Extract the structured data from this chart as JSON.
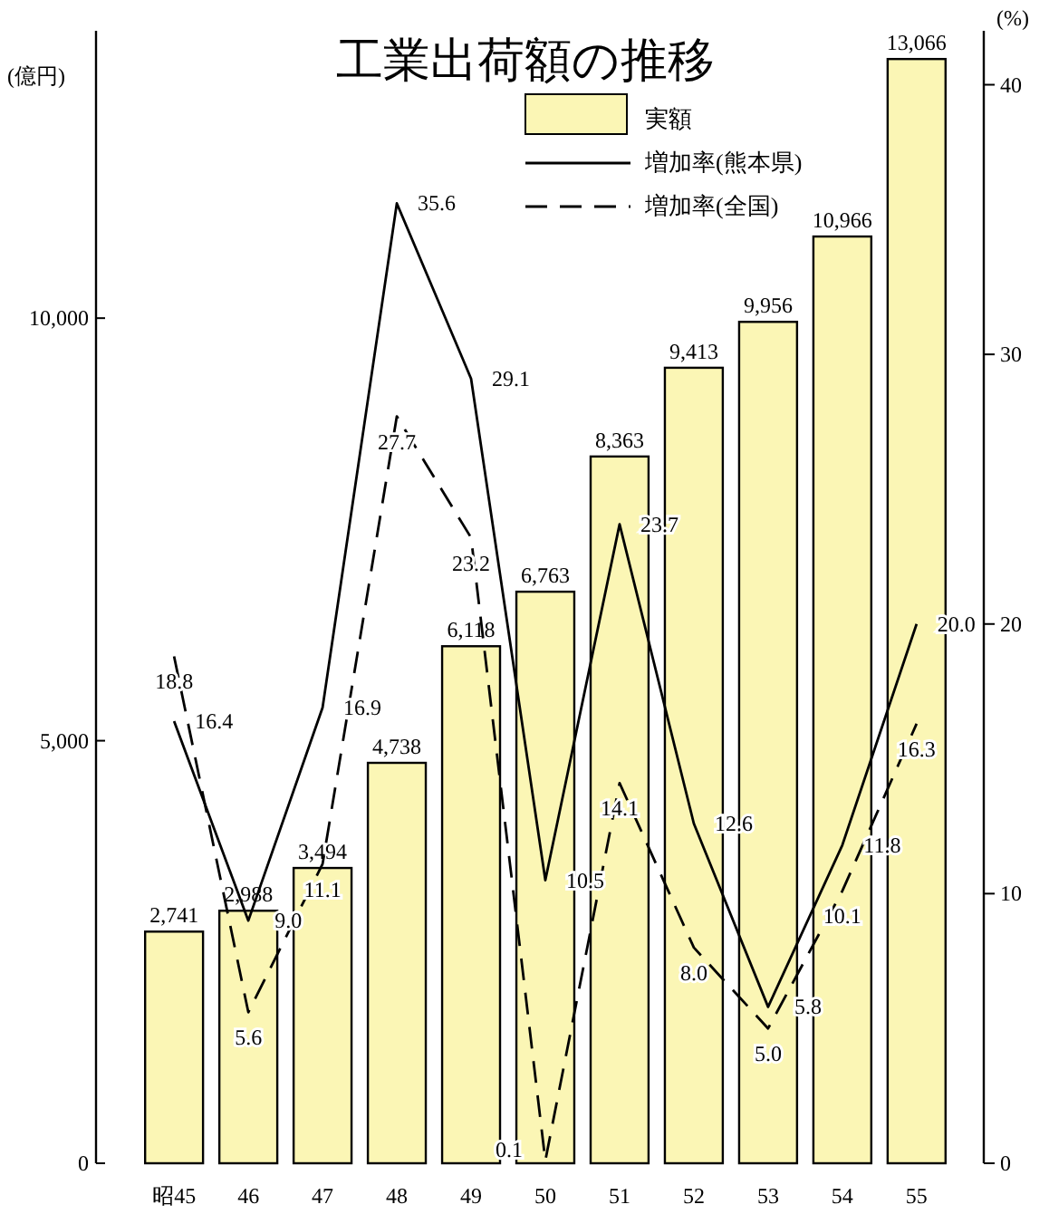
{
  "chart_data": {
    "type": "bar",
    "title": "工業出荷額の推移",
    "ylabel": "(億円)",
    "y2label": "(%)",
    "categories": [
      "昭45",
      "46",
      "47",
      "48",
      "49",
      "50",
      "51",
      "52",
      "53",
      "54",
      "55"
    ],
    "series": [
      {
        "name": "実額",
        "type": "bar",
        "color": "#fbf6b5",
        "values": [
          2741,
          2988,
          3494,
          4738,
          6118,
          6763,
          8363,
          9413,
          9956,
          10966,
          13066
        ],
        "value_labels": [
          "2,741",
          "2,988",
          "3,494",
          "4,738",
          "6,118",
          "6,763",
          "8,363",
          "9,413",
          "9,956",
          "10,966",
          "13,066"
        ]
      },
      {
        "name": "増加率(熊本県)",
        "type": "line",
        "axis": "y2",
        "color": "#000000",
        "line_style": "solid",
        "values": [
          16.4,
          9.0,
          16.9,
          35.6,
          29.1,
          10.5,
          23.7,
          12.6,
          5.8,
          11.8,
          20.0
        ],
        "value_labels": [
          "16.4",
          "9.0",
          "16.9",
          "35.6",
          "29.1",
          "10.5",
          "23.7",
          "12.6",
          "5.8",
          "11.8",
          "20.0"
        ]
      },
      {
        "name": "増加率(全国)",
        "type": "line",
        "axis": "y2",
        "color": "#000000",
        "line_style": "dashed",
        "values": [
          18.8,
          5.6,
          11.1,
          27.7,
          23.2,
          0.1,
          14.1,
          8.0,
          5.0,
          10.1,
          16.3
        ],
        "value_labels": [
          "18.8",
          "5.6",
          "11.1",
          "27.7",
          "23.2",
          "0.1",
          "14.1",
          "8.0",
          "5.0",
          "10.1",
          "16.3"
        ]
      }
    ],
    "ylim": [
      0,
      13400
    ],
    "yticks": [
      0,
      {
        "value": 5000,
        "label": "5,000"
      },
      {
        "value": 10000,
        "label": "10,000"
      }
    ],
    "y2lim": [
      0,
      42
    ],
    "y2ticks": [
      0,
      10,
      20,
      30,
      40
    ],
    "legend": "top",
    "grid": false
  }
}
